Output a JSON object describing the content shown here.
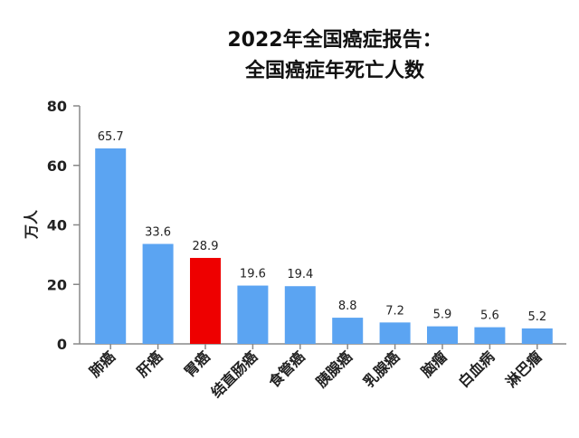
{
  "chart_data": {
    "type": "bar",
    "title": [
      "2022年全国癌症报告：",
      "全国癌症年死亡人数"
    ],
    "ylabel": "万人",
    "xlabel": "",
    "ylim": [
      0,
      80
    ],
    "yticks": [
      0,
      20,
      40,
      60,
      80
    ],
    "grid": false,
    "categories": [
      "肺癌",
      "肝癌",
      "胃癌",
      "结直肠癌",
      "食管癌",
      "胰腺癌",
      "乳腺癌",
      "脑瘤",
      "白血病",
      "淋巴瘤"
    ],
    "values": [
      65.7,
      33.6,
      28.9,
      19.6,
      19.4,
      8.8,
      7.2,
      5.9,
      5.6,
      5.2
    ],
    "value_labels": [
      "65.7",
      "33.6",
      "28.9",
      "19.6",
      "19.4",
      "8.8",
      "7.2",
      "5.9",
      "5.6",
      "5.2"
    ],
    "highlight_index": 2
  },
  "colors": {
    "bar": "#5ba4f2",
    "highlight": "#ee0000",
    "axis": "#888888",
    "text": "#222222"
  }
}
